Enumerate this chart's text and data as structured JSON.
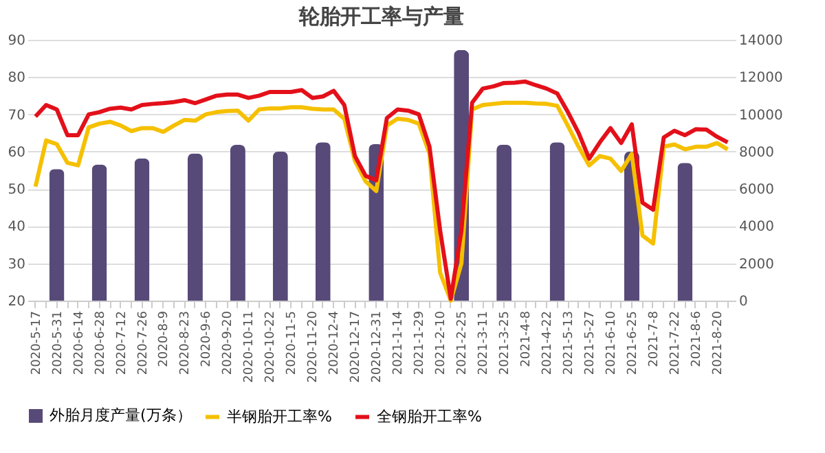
{
  "chart_data": {
    "type": "line",
    "title": "轮胎开工率与产量",
    "categories": [
      "2020-5-17",
      null,
      "2020-5-31",
      null,
      "2020-6-14",
      null,
      "2020-6-28",
      null,
      "2020-7-12",
      null,
      "2020-7-26",
      null,
      "2020-8-9",
      null,
      "2020-8-23",
      null,
      "2020-9-6",
      null,
      "2020-9-20",
      null,
      "2020-10-11",
      null,
      "2020-10-22",
      null,
      "2020-11-5",
      null,
      "2020-11-20",
      null,
      "2020-12-4",
      null,
      "2020-12-17",
      null,
      "2020-12-31",
      null,
      "2021-1-14",
      null,
      "2021-1-29",
      null,
      "2021-2-10",
      null,
      "2021-2-25",
      null,
      "2021-3-11",
      null,
      "2021-3-25",
      null,
      "2021-4-8",
      null,
      "2021-4-22",
      null,
      "2021-5-13",
      null,
      "2021-5-27",
      null,
      "2021-6-10",
      null,
      "2021-6-25",
      null,
      "2021-7-8",
      null,
      "2021-7-22",
      null,
      "2021-8-6",
      null,
      "2021-8-20",
      null
    ],
    "series": [
      {
        "name": "外胎月度产量(万条）",
        "type": "bar",
        "axis": "y2",
        "color": "#574a78",
        "values": [
          null,
          null,
          7060,
          null,
          null,
          null,
          7300,
          null,
          null,
          null,
          7640,
          null,
          null,
          null,
          null,
          7900,
          null,
          null,
          null,
          8360,
          null,
          null,
          null,
          8000,
          null,
          null,
          null,
          8500,
          null,
          null,
          null,
          null,
          8400,
          null,
          null,
          null,
          null,
          null,
          null,
          null,
          13450,
          null,
          null,
          null,
          8370,
          null,
          null,
          null,
          null,
          8500,
          null,
          null,
          null,
          null,
          null,
          null,
          8000,
          null,
          null,
          null,
          null,
          7400,
          null,
          null,
          null,
          null
        ]
      },
      {
        "name": "半钢胎开工率%",
        "color": "#f5c000",
        "values": [
          50.6,
          63,
          62,
          57,
          56.3,
          66.5,
          67.5,
          68,
          67,
          65.5,
          66.3,
          66.3,
          65.3,
          67,
          68.5,
          68.3,
          70,
          70.6,
          70.9,
          71,
          68.3,
          71.3,
          71.6,
          71.6,
          71.9,
          71.9,
          71.5,
          71.3,
          71.3,
          68.8,
          57.5,
          52,
          49.4,
          67,
          68.8,
          68.5,
          67.5,
          59.4,
          27.5,
          20,
          30,
          71.3,
          72.5,
          72.8,
          73.1,
          73.1,
          73.1,
          72.9,
          72.8,
          72.3,
          66.9,
          61.3,
          56.3,
          58.8,
          58.1,
          54.8,
          59.4,
          37.5,
          35.3,
          61.3,
          61.9,
          60.6,
          61.3,
          61.3,
          62.3,
          60.6
        ]
      },
      {
        "name": "全钢胎开工率%",
        "color": "#e3101a",
        "values": [
          69.4,
          72.5,
          71.3,
          64.4,
          64.4,
          70,
          70.6,
          71.5,
          71.8,
          71.3,
          72.5,
          72.8,
          73,
          73.3,
          73.8,
          73,
          74,
          75,
          75.3,
          75.3,
          74.4,
          75,
          76,
          76,
          76,
          76.5,
          74.4,
          74.8,
          76.3,
          72.5,
          58.8,
          53.5,
          52.3,
          69,
          71.3,
          71,
          70,
          61.3,
          38.8,
          20.5,
          38.8,
          73.1,
          76.9,
          77.5,
          78.4,
          78.5,
          78.8,
          77.8,
          76.9,
          75.6,
          70.6,
          65,
          58.1,
          62.5,
          66.3,
          62.3,
          67.3,
          46.3,
          44.4,
          63.8,
          65.6,
          64.4,
          66,
          65.9,
          64,
          62.5
        ]
      }
    ],
    "ylim": [
      20,
      90
    ],
    "yticks": [
      20,
      30,
      40,
      50,
      60,
      70,
      80,
      90
    ],
    "y2lim": [
      0,
      14000
    ],
    "y2ticks": [
      0,
      2000,
      4000,
      6000,
      8000,
      10000,
      12000,
      14000
    ],
    "grid": "y",
    "legend": "bottom"
  }
}
